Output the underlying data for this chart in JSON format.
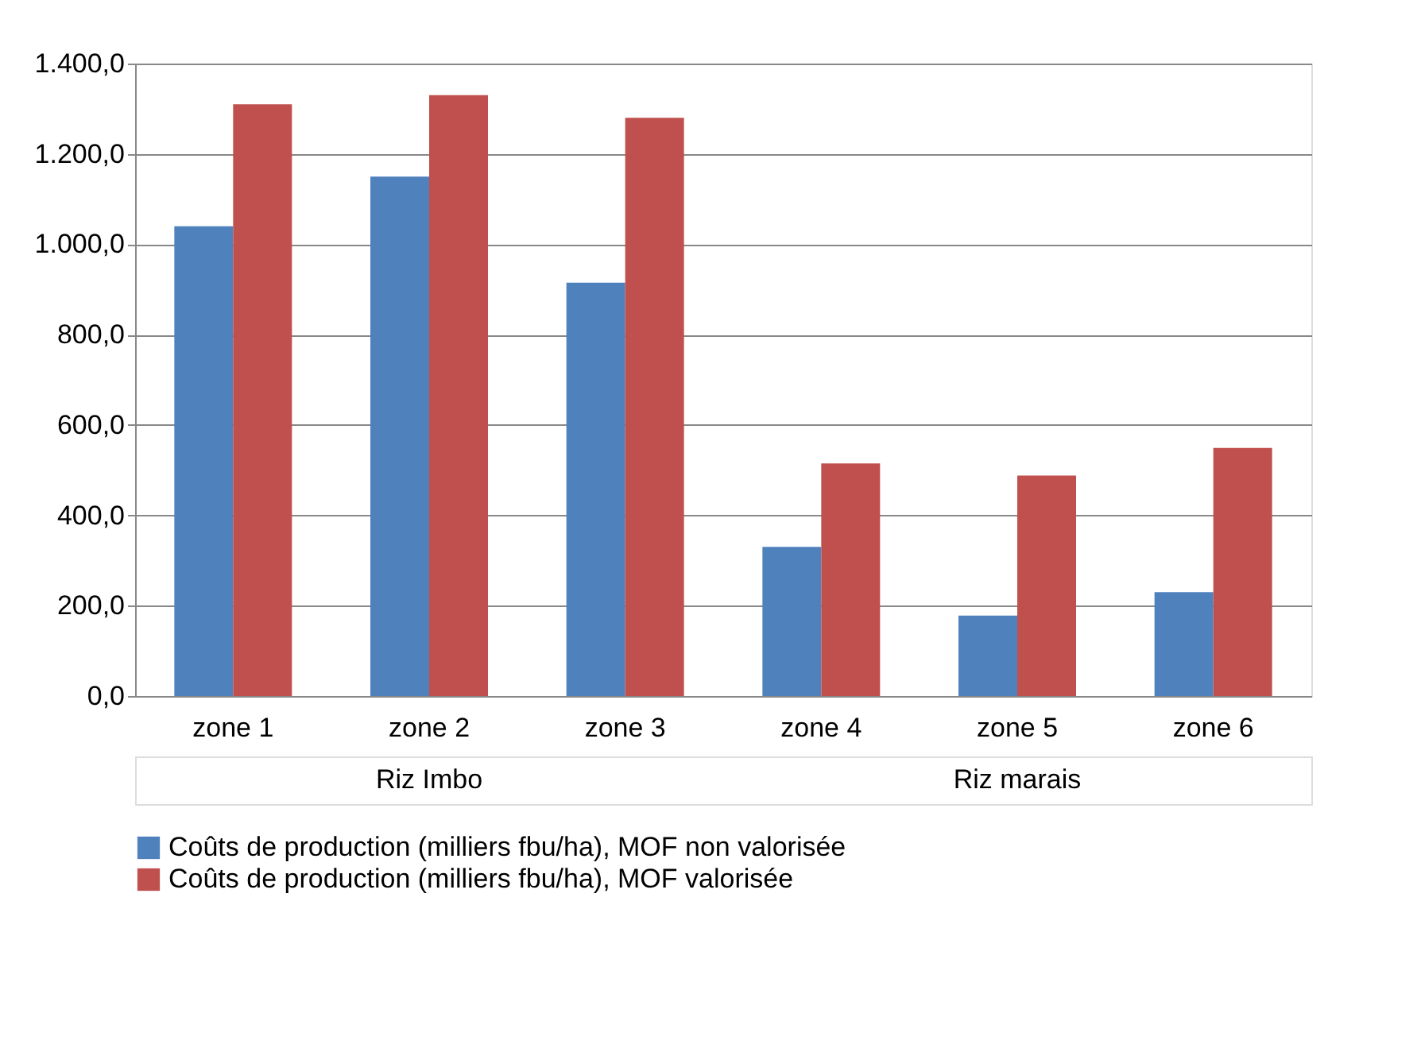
{
  "chart_data": {
    "type": "bar",
    "categories": [
      "zone 1",
      "zone 2",
      "zone 3",
      "zone 4",
      "zone 5",
      "zone 6"
    ],
    "series": [
      {
        "name": "Coûts de production (milliers fbu/ha), MOF non valorisée",
        "color": "#4f81bd",
        "values": [
          1040,
          1150,
          915,
          330,
          178,
          230
        ]
      },
      {
        "name": "Coûts de production (milliers fbu/ha), MOF valorisée",
        "color": "#c0504d",
        "values": [
          1310,
          1330,
          1280,
          515,
          488,
          549
        ]
      }
    ],
    "ylim": [
      0,
      1400
    ],
    "yticks": [
      {
        "value": 0,
        "label": "0,0"
      },
      {
        "value": 200,
        "label": "200,0"
      },
      {
        "value": 400,
        "label": "400,0"
      },
      {
        "value": 600,
        "label": "600,0"
      },
      {
        "value": 800,
        "label": "800,0"
      },
      {
        "value": 1000,
        "label": "1.000,0"
      },
      {
        "value": 1200,
        "label": "1.200,0"
      },
      {
        "value": 1400,
        "label": "1.400,0"
      }
    ],
    "annotations": [
      "Riz Imbo",
      "Riz marais"
    ],
    "grid": "y",
    "legend": "bottom"
  }
}
